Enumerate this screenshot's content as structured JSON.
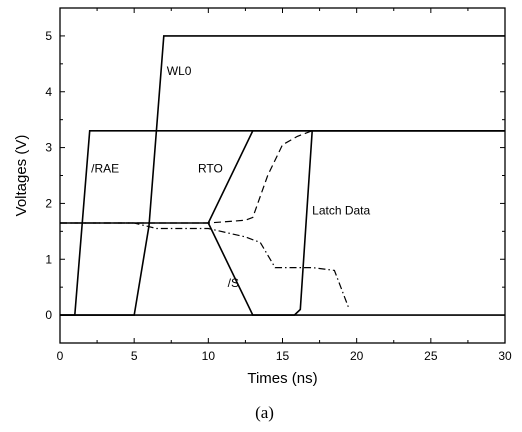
{
  "chart_data": {
    "type": "line",
    "xlabel": "Times (ns)",
    "ylabel": "Voltages (V)",
    "xlim": [
      0,
      30
    ],
    "ylim": [
      -0.5,
      5.5
    ],
    "xticks": [
      "0",
      "5",
      "10",
      "15",
      "20",
      "25",
      "30"
    ],
    "yticks": [
      "0",
      "1",
      "2",
      "3",
      "4",
      "5"
    ],
    "grid": false,
    "caption": "(a)",
    "series": [
      {
        "name": "/RAE",
        "style": "solid",
        "x": [
          0,
          1,
          2,
          30
        ],
        "y": [
          0,
          0,
          3.3,
          3.3
        ]
      },
      {
        "name": "WL0",
        "style": "solid",
        "x": [
          0,
          5,
          6,
          7,
          30
        ],
        "y": [
          0,
          0,
          1.6,
          5.0,
          5.0
        ]
      },
      {
        "name": "RTO",
        "style": "solid",
        "x": [
          0,
          10,
          13,
          30
        ],
        "y": [
          1.65,
          1.65,
          3.3,
          3.3
        ]
      },
      {
        "name": "/S",
        "style": "solid",
        "x": [
          10,
          13,
          30
        ],
        "y": [
          1.65,
          0,
          0
        ]
      },
      {
        "name": "Latch Data",
        "style": "solid",
        "x": [
          0,
          15.8,
          16.2,
          17,
          30
        ],
        "y": [
          0,
          0,
          0.1,
          3.3,
          3.3
        ]
      },
      {
        "name": "",
        "style": "dashed",
        "x": [
          0,
          10,
          12.5,
          13,
          14,
          15,
          16,
          17,
          30
        ],
        "y": [
          1.65,
          1.65,
          1.7,
          1.75,
          2.5,
          3.05,
          3.2,
          3.3,
          3.3
        ]
      },
      {
        "name": "",
        "style": "dashdot",
        "x": [
          0,
          5,
          6.5,
          10,
          12.5,
          13.5,
          14.5,
          17,
          18.5,
          19.5
        ],
        "y": [
          1.65,
          1.65,
          1.55,
          1.55,
          1.4,
          1.3,
          0.85,
          0.85,
          0.8,
          0.1
        ]
      }
    ],
    "annotations": [
      {
        "text": "WL0",
        "x": 7.2,
        "y": 4.3
      },
      {
        "text": "/RAE",
        "x": 2.1,
        "y": 2.55
      },
      {
        "text": "RTO",
        "x": 9.3,
        "y": 2.55
      },
      {
        "text": "Latch Data",
        "x": 17.0,
        "y": 1.8
      },
      {
        "text": "/S",
        "x": 11.3,
        "y": 0.5
      }
    ]
  }
}
